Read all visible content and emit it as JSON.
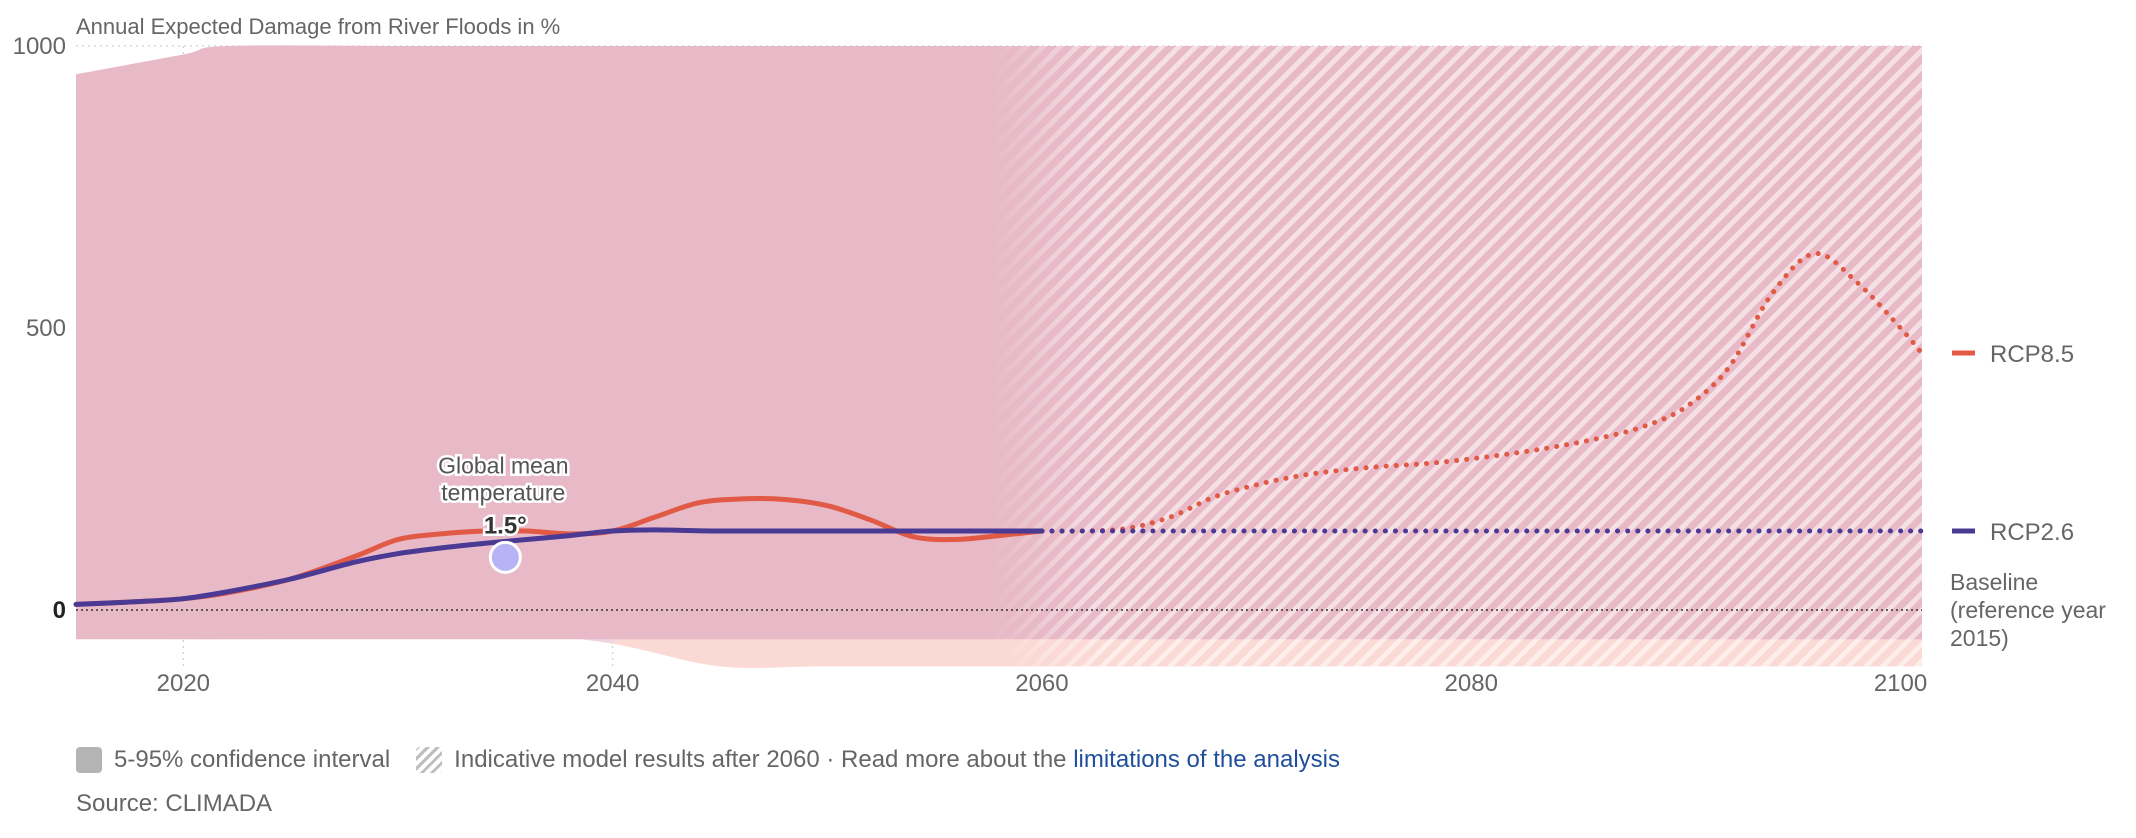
{
  "chart_data": {
    "type": "line",
    "title": "Annual Expected Damage from River Floods in %",
    "x_range": [
      2015,
      2101
    ],
    "y_range": [
      -100,
      1000
    ],
    "x_ticks": [
      2020,
      2040,
      2060,
      2080,
      2100
    ],
    "y_ticks": [
      {
        "value": 1000,
        "label": "1000"
      },
      {
        "value": 500,
        "label": "500"
      },
      {
        "value": 0,
        "label": "0"
      }
    ],
    "indicative_after": 2060,
    "annotation": {
      "year": 2035,
      "value": 120,
      "title_line1": "Global mean",
      "title_line2": "temperature",
      "label": "1.5°",
      "color": "#b7b3f4"
    },
    "baseline": {
      "value": 0,
      "label_line1": "Baseline",
      "label_line2": "(reference year",
      "label_line3": "2015)"
    },
    "series": [
      {
        "name": "RCP8.5",
        "color": "#e05a45",
        "x": [
          2015,
          2018,
          2020,
          2022,
          2025,
          2028,
          2030,
          2032,
          2034,
          2036,
          2038,
          2040,
          2042,
          2044,
          2046,
          2048,
          2050,
          2052,
          2054,
          2056,
          2058,
          2060,
          2062,
          2064,
          2066,
          2068,
          2070,
          2072,
          2074,
          2076,
          2078,
          2080,
          2082,
          2084,
          2086,
          2088,
          2090,
          2092,
          2094,
          2096,
          2098,
          2100,
          2101
        ],
        "values": [
          10,
          15,
          20,
          30,
          55,
          95,
          125,
          135,
          140,
          140,
          135,
          140,
          165,
          190,
          197,
          196,
          185,
          160,
          130,
          125,
          132,
          140,
          140,
          145,
          165,
          200,
          222,
          238,
          248,
          255,
          260,
          268,
          278,
          290,
          305,
          325,
          360,
          430,
          560,
          632,
          580,
          500,
          455
        ]
      },
      {
        "name": "RCP2.6",
        "color": "#4a3a94",
        "x": [
          2015,
          2018,
          2020,
          2022,
          2025,
          2028,
          2030,
          2032,
          2034,
          2036,
          2038,
          2040,
          2042,
          2045,
          2050,
          2055,
          2060,
          2070,
          2080,
          2090,
          2101
        ],
        "values": [
          10,
          15,
          20,
          32,
          55,
          85,
          100,
          110,
          118,
          125,
          132,
          140,
          142,
          140,
          140,
          140,
          140,
          140,
          140,
          140,
          140
        ]
      }
    ],
    "confidence_interval": {
      "label": "5-95% confidence interval",
      "x": [
        2015,
        2020,
        2022,
        2030,
        2035,
        2040,
        2045,
        2050,
        2060,
        2070,
        2080,
        2085,
        2090,
        2100,
        2101
      ],
      "upper": [
        950,
        985,
        1000,
        1000,
        1000,
        1000,
        1000,
        1000,
        1000,
        1000,
        1000,
        1000,
        1000,
        1000,
        1000
      ],
      "lower": [
        -50,
        -52,
        -52,
        -50,
        -40,
        -60,
        -100,
        -100,
        -100,
        -100,
        -100,
        -100,
        -100,
        -100,
        -100
      ]
    }
  },
  "legend": {
    "ci_label": "5-95% confidence interval",
    "indicative_label": "Indicative model results after 2060 · Read more about the",
    "link_label": "limitations of the analysis"
  },
  "source": "Source: CLIMADA",
  "colors": {
    "ci_fill": "#e8bac8",
    "ci_lower_fill": "#fbd9d4",
    "ci_lower_rcp26": "#e6d4ea",
    "hatch": "#ffffff"
  }
}
